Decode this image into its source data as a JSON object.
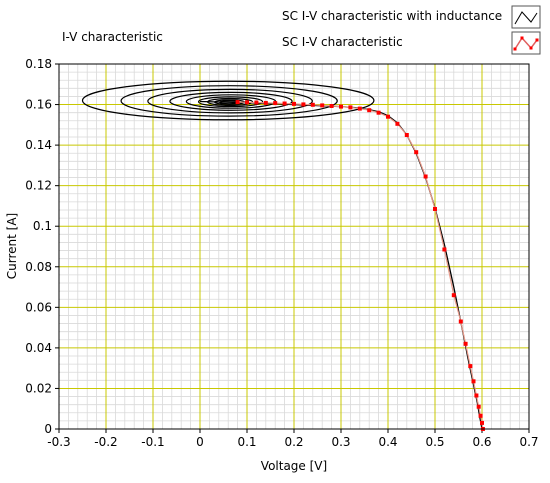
{
  "chart_data": {
    "type": "line",
    "title": "I-V characteristic",
    "xlabel": "Voltage [V]",
    "ylabel": "Current  [A]",
    "xlim": [
      -0.3,
      0.7
    ],
    "ylim": [
      0,
      0.18
    ],
    "x_major_ticks": [
      "-0.3",
      "-0.2",
      "-0.1",
      "0",
      "0.1",
      "0.2",
      "0.3",
      "0.4",
      "0.5",
      "0.6",
      "0.7"
    ],
    "y_major_ticks": [
      "0",
      "0.02",
      "0.04",
      "0.06",
      "0.08",
      "0.1",
      "0.12",
      "0.14",
      "0.16",
      "0.18"
    ],
    "grid": true,
    "legend_position": "top-right",
    "series": [
      {
        "name": "SC I-V characteristic with inductance",
        "color": "#000000",
        "marker": "none",
        "points": [
          [
            0.0,
            0.1615
          ],
          [
            0.05,
            0.1612
          ],
          [
            0.1,
            0.1609
          ],
          [
            0.15,
            0.1605
          ],
          [
            0.2,
            0.16
          ],
          [
            0.25,
            0.1595
          ],
          [
            0.3,
            0.159
          ],
          [
            0.33,
            0.1585
          ],
          [
            0.36,
            0.1575
          ],
          [
            0.38,
            0.1565
          ],
          [
            0.4,
            0.1545
          ],
          [
            0.42,
            0.151
          ],
          [
            0.44,
            0.145
          ],
          [
            0.46,
            0.136
          ],
          [
            0.48,
            0.124
          ],
          [
            0.5,
            0.109
          ],
          [
            0.52,
            0.091
          ],
          [
            0.54,
            0.07
          ],
          [
            0.55,
            0.0585
          ],
          [
            0.56,
            0.047
          ],
          [
            0.57,
            0.035
          ],
          [
            0.58,
            0.024
          ],
          [
            0.59,
            0.013
          ],
          [
            0.595,
            0.006
          ],
          [
            0.6,
            0.0
          ]
        ],
        "oscillation_loops": [
          {
            "cx": 0.06,
            "cy": 0.162,
            "rx": 0.31,
            "ry": 0.0095
          },
          {
            "cx": 0.062,
            "cy": 0.1618,
            "rx": 0.23,
            "ry": 0.0075
          },
          {
            "cx": 0.064,
            "cy": 0.1617,
            "rx": 0.175,
            "ry": 0.0058
          },
          {
            "cx": 0.066,
            "cy": 0.1616,
            "rx": 0.13,
            "ry": 0.0044
          },
          {
            "cx": 0.066,
            "cy": 0.1615,
            "rx": 0.095,
            "ry": 0.0033
          },
          {
            "cx": 0.065,
            "cy": 0.1614,
            "rx": 0.068,
            "ry": 0.0024
          },
          {
            "cx": 0.064,
            "cy": 0.1613,
            "rx": 0.048,
            "ry": 0.0017
          },
          {
            "cx": 0.063,
            "cy": 0.1612,
            "rx": 0.032,
            "ry": 0.0011
          },
          {
            "cx": 0.062,
            "cy": 0.1611,
            "rx": 0.02,
            "ry": 0.0007
          }
        ]
      },
      {
        "name": "SC I-V characteristic",
        "color": "#ff0000",
        "line_color": "#e89a8a",
        "marker": "square",
        "points": [
          [
            0.08,
            0.1612
          ],
          [
            0.1,
            0.1611
          ],
          [
            0.12,
            0.161
          ],
          [
            0.14,
            0.1608
          ],
          [
            0.16,
            0.1607
          ],
          [
            0.18,
            0.1605
          ],
          [
            0.2,
            0.1603
          ],
          [
            0.22,
            0.1601
          ],
          [
            0.24,
            0.1599
          ],
          [
            0.26,
            0.1596
          ],
          [
            0.28,
            0.1593
          ],
          [
            0.3,
            0.159
          ],
          [
            0.32,
            0.1586
          ],
          [
            0.34,
            0.158
          ],
          [
            0.36,
            0.1572
          ],
          [
            0.38,
            0.156
          ],
          [
            0.4,
            0.154
          ],
          [
            0.42,
            0.1505
          ],
          [
            0.44,
            0.145
          ],
          [
            0.46,
            0.1365
          ],
          [
            0.48,
            0.1245
          ],
          [
            0.5,
            0.1085
          ],
          [
            0.52,
            0.0885
          ],
          [
            0.54,
            0.066
          ],
          [
            0.555,
            0.053
          ],
          [
            0.565,
            0.042
          ],
          [
            0.575,
            0.031
          ],
          [
            0.582,
            0.0235
          ],
          [
            0.588,
            0.0165
          ],
          [
            0.593,
            0.011
          ],
          [
            0.597,
            0.0065
          ],
          [
            0.6,
            0.003
          ],
          [
            0.602,
            0.0
          ]
        ]
      }
    ]
  }
}
